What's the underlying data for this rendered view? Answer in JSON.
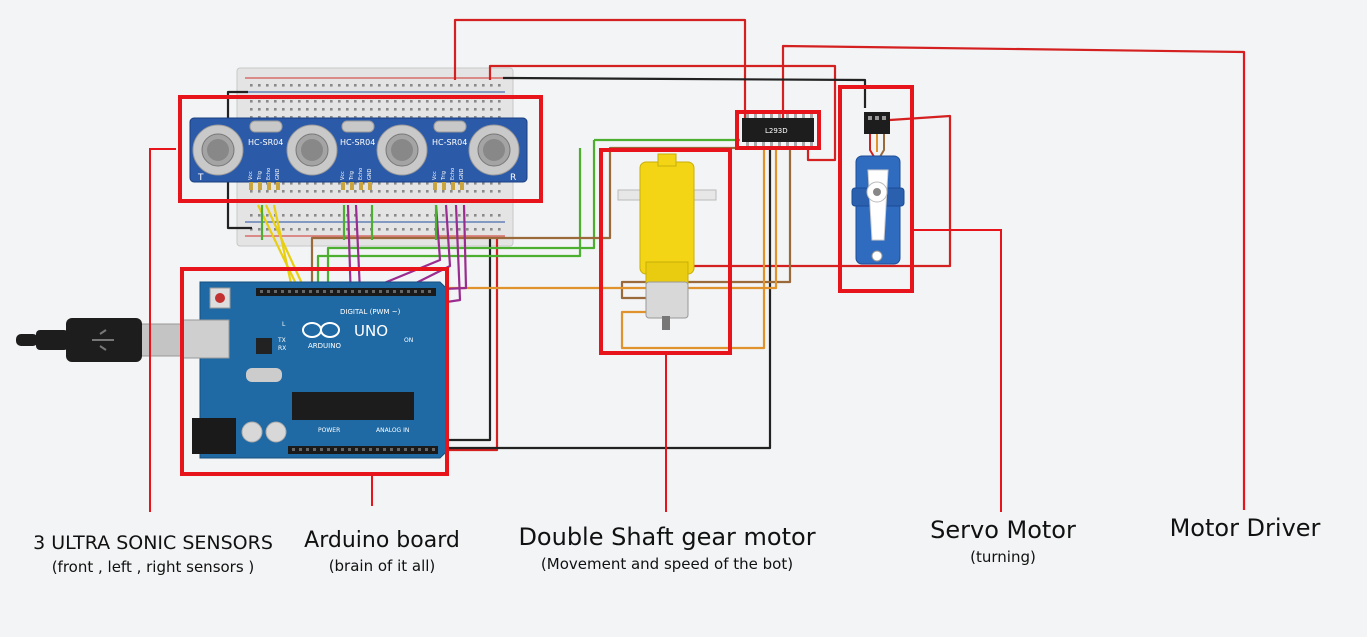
{
  "parts": {
    "sensor_model": "HC-SR04",
    "sensor_pins": [
      "Vcc",
      "Trig",
      "Echo",
      "GND"
    ],
    "sensor_corner_left": "T",
    "sensor_corner_right": "R",
    "driver_chip": "L293D",
    "arduino_brand": "ARDUINO",
    "arduino_model": "UNO",
    "arduino_digital_label": "DIGITAL (PWM ~)",
    "arduino_power_label": "POWER",
    "arduino_analog_label": "ANALOG IN",
    "arduino_on_label": "ON",
    "arduino_led_labels": [
      "L",
      "TX",
      "RX"
    ]
  },
  "captions": {
    "sensors": {
      "title": "3 ULTRA SONIC  SENSORS",
      "subtitle": "(front , left , right sensors )"
    },
    "arduino": {
      "title": "Arduino board",
      "subtitle": "(brain of it all)"
    },
    "motor": {
      "title": "Double Shaft gear motor",
      "subtitle": "(Movement and speed of the bot)"
    },
    "servo": {
      "title": "Servo Motor",
      "subtitle": "(turning)"
    },
    "driver": {
      "title": "Motor Driver"
    }
  },
  "colors": {
    "highlight": "#e8141b",
    "board_blue": "#1f6aa5",
    "sensor_blue": "#2b5aa8",
    "motor_yellow": "#f3d516",
    "wire_yellow": "#e8cf12",
    "wire_green": "#4caf2f",
    "wire_purple": "#9b2c8f",
    "wire_brown": "#9a6a3a",
    "wire_orange": "#e0922c",
    "wire_black": "#222222",
    "wire_red": "#d42020"
  }
}
